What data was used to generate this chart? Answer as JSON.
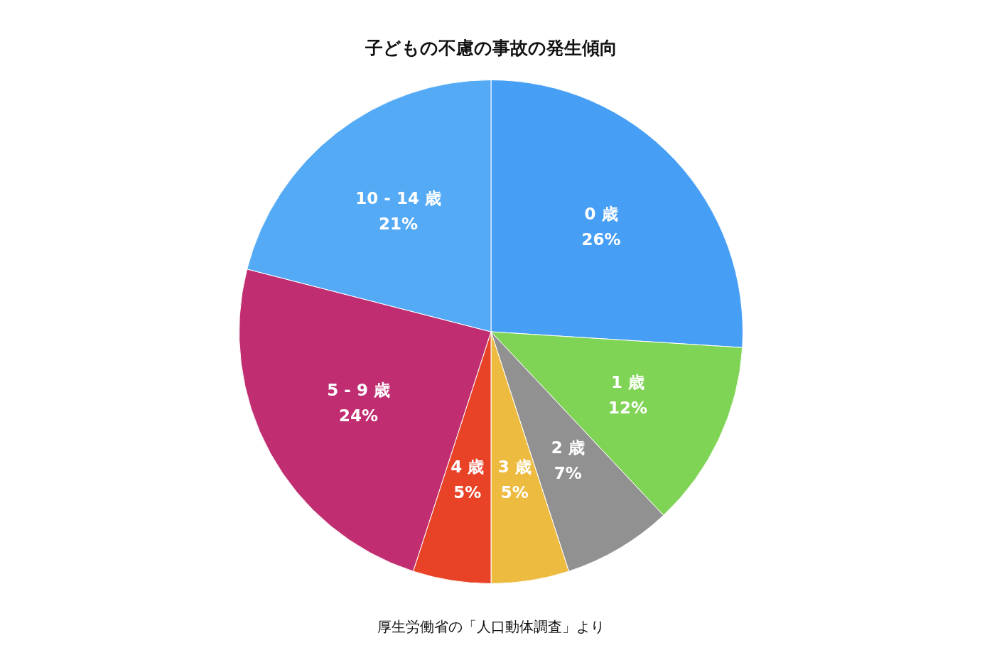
{
  "chart_data": {
    "type": "pie",
    "title": "子どもの不慮の事故の発生傾向",
    "categories": [
      "0 歳",
      "1 歳",
      "2 歳",
      "3 歳",
      "4 歳",
      "5 - 9 歳",
      "10 - 14 歳"
    ],
    "values": [
      26,
      12,
      7,
      5,
      5,
      24,
      21
    ],
    "colors": [
      "#479ff5",
      "#80d455",
      "#919191",
      "#edbb40",
      "#e84327",
      "#c02d71",
      "#55aaf5"
    ],
    "value_labels": [
      "26%",
      "12%",
      "7%",
      "5%",
      "5%",
      "24%",
      "21%"
    ],
    "legend": false,
    "annotations": [
      "厚生労働省の「人口動体調査」より"
    ]
  }
}
